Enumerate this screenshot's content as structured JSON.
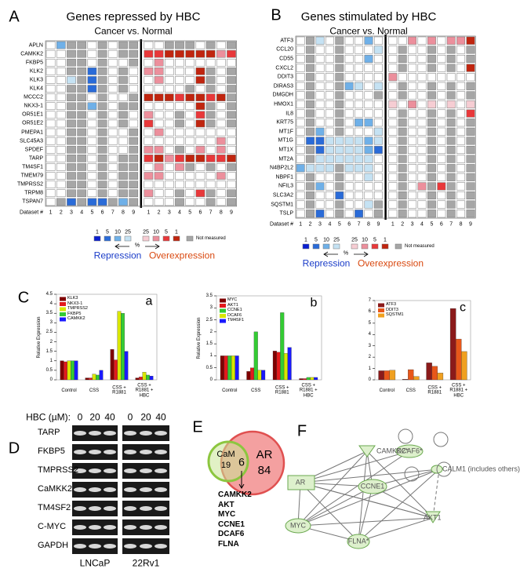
{
  "panels": [
    "A",
    "B",
    "C",
    "D",
    "E",
    "F"
  ],
  "heatmap_legend": {
    "repression": {
      "values": [
        1,
        5,
        10,
        25
      ],
      "colors": [
        "#0a1fd0",
        "#2a6bd8",
        "#6fb0e8",
        "#c5e2f3"
      ]
    },
    "overexpression": {
      "values": [
        25,
        10,
        5,
        1
      ],
      "colors": [
        "#f6cdd3",
        "#ec8f9c",
        "#e8383a",
        "#c0250f"
      ]
    },
    "percent": "%",
    "not_measured": {
      "label": "Not measured",
      "color": "#a6a6a6"
    },
    "repression_label": "Repression",
    "overexpression_label": "Overexpression"
  },
  "heatmaps": [
    {
      "title": "Genes repressed by HBC",
      "subtitle": "Cancer vs. Normal",
      "dataset_label": "Dataset #",
      "datasets": [
        1,
        2,
        3,
        4,
        5,
        6,
        7,
        8,
        9
      ],
      "rows": [
        {
          "gene": "APLN",
          "cells": [
            0,
            -10,
            null,
            null,
            0,
            null,
            0,
            null,
            null,
            0,
            0,
            null,
            null,
            null,
            0,
            null,
            0,
            null
          ]
        },
        {
          "gene": "CAMKK2",
          "cells": [
            0,
            0,
            null,
            null,
            0,
            null,
            0,
            null,
            null,
            5,
            5,
            1,
            1,
            1,
            1,
            1,
            10,
            5
          ]
        },
        {
          "gene": "FKBP5",
          "cells": [
            0,
            0,
            null,
            null,
            0,
            null,
            0,
            0,
            null,
            0,
            10,
            0,
            0,
            0,
            0,
            0,
            0,
            0
          ]
        },
        {
          "gene": "KLK2",
          "cells": [
            0,
            0,
            null,
            null,
            -5,
            null,
            0,
            null,
            0,
            10,
            10,
            0,
            0,
            0,
            1,
            null,
            0,
            null
          ]
        },
        {
          "gene": "KLK3",
          "cells": [
            0,
            0,
            -25,
            null,
            -5,
            null,
            0,
            null,
            0,
            0,
            10,
            0,
            0,
            0,
            1,
            null,
            0,
            null
          ]
        },
        {
          "gene": "KLK4",
          "cells": [
            0,
            0,
            null,
            null,
            -5,
            null,
            0,
            null,
            0,
            0,
            0,
            0,
            0,
            null,
            0,
            null,
            0,
            null
          ]
        },
        {
          "gene": "MCCC2",
          "cells": [
            0,
            0,
            null,
            null,
            0,
            null,
            0,
            0,
            null,
            1,
            1,
            1,
            5,
            1,
            1,
            5,
            1,
            null
          ]
        },
        {
          "gene": "NKX3-1",
          "cells": [
            0,
            0,
            null,
            null,
            -10,
            null,
            0,
            null,
            null,
            0,
            0,
            0,
            0,
            0,
            1,
            null,
            0,
            null
          ]
        },
        {
          "gene": "OR51E1",
          "cells": [
            0,
            0,
            null,
            null,
            0,
            null,
            0,
            null,
            0,
            10,
            0,
            0,
            null,
            0,
            5,
            null,
            0,
            null
          ]
        },
        {
          "gene": "OR51E2",
          "cells": [
            0,
            0,
            null,
            null,
            0,
            null,
            0,
            null,
            0,
            5,
            0,
            0,
            null,
            0,
            1,
            null,
            0,
            null
          ]
        },
        {
          "gene": "PMEPA1",
          "cells": [
            0,
            0,
            null,
            null,
            0,
            null,
            0,
            0,
            null,
            0,
            10,
            0,
            0,
            0,
            0,
            0,
            0,
            0
          ]
        },
        {
          "gene": "SLC45A3",
          "cells": [
            0,
            0,
            null,
            null,
            0,
            null,
            0,
            0,
            null,
            0,
            0,
            0,
            0,
            0,
            0,
            0,
            10,
            0
          ]
        },
        {
          "gene": "SPDEF",
          "cells": [
            0,
            0,
            null,
            null,
            0,
            null,
            0,
            0,
            null,
            10,
            10,
            0,
            null,
            0,
            10,
            0,
            10,
            0
          ]
        },
        {
          "gene": "TARP",
          "cells": [
            0,
            0,
            null,
            null,
            0,
            null,
            0,
            null,
            null,
            5,
            1,
            10,
            5,
            1,
            1,
            5,
            5,
            1
          ]
        },
        {
          "gene": "TM4SF1",
          "cells": [
            0,
            0,
            null,
            null,
            0,
            null,
            0,
            null,
            null,
            0,
            10,
            0,
            10,
            null,
            0,
            null,
            0,
            null
          ]
        },
        {
          "gene": "TMEM79",
          "cells": [
            0,
            0,
            null,
            null,
            0,
            null,
            0,
            null,
            null,
            10,
            10,
            0,
            0,
            0,
            0,
            0,
            10,
            0
          ]
        },
        {
          "gene": "TMPRSS2",
          "cells": [
            0,
            0,
            null,
            null,
            0,
            null,
            0,
            null,
            null,
            0,
            0,
            0,
            0,
            0,
            0,
            0,
            0,
            0
          ]
        },
        {
          "gene": "TRPM8",
          "cells": [
            0,
            0,
            null,
            null,
            0,
            null,
            0,
            null,
            null,
            10,
            0,
            0,
            null,
            0,
            5,
            null,
            0,
            null
          ]
        },
        {
          "gene": "TSPAN7",
          "cells": [
            0,
            null,
            -5,
            null,
            -5,
            -5,
            null,
            -10,
            null,
            0,
            0,
            0,
            null,
            0,
            0,
            null,
            0,
            null
          ]
        }
      ]
    },
    {
      "title": "Genes stimulated by HBC",
      "subtitle": "Cancer vs. Normal",
      "dataset_label": "Dataset #",
      "datasets": [
        1,
        2,
        3,
        4,
        5,
        6,
        7,
        8,
        9
      ],
      "rows": [
        {
          "gene": "ATF3",
          "cells": [
            0,
            null,
            -25,
            0,
            null,
            0,
            0,
            -10,
            0,
            0,
            0,
            10,
            0,
            10,
            0,
            10,
            10,
            1
          ]
        },
        {
          "gene": "CCL20",
          "cells": [
            0,
            null,
            0,
            0,
            null,
            0,
            0,
            0,
            -25,
            0,
            null,
            0,
            0,
            null,
            0,
            null,
            0,
            null
          ]
        },
        {
          "gene": "CD55",
          "cells": [
            0,
            null,
            0,
            0,
            null,
            0,
            0,
            -10,
            0,
            0,
            null,
            0,
            0,
            null,
            0,
            null,
            0,
            null
          ]
        },
        {
          "gene": "CXCL2",
          "cells": [
            0,
            null,
            0,
            0,
            null,
            0,
            0,
            0,
            0,
            0,
            null,
            0,
            0,
            null,
            0,
            null,
            0,
            1
          ]
        },
        {
          "gene": "DDIT3",
          "cells": [
            0,
            null,
            0,
            0,
            null,
            0,
            0,
            0,
            0,
            10,
            0,
            0,
            0,
            0,
            0,
            0,
            0,
            0
          ]
        },
        {
          "gene": "DIRAS3",
          "cells": [
            0,
            null,
            0,
            0,
            null,
            -10,
            -25,
            0,
            -25,
            0,
            null,
            0,
            0,
            null,
            0,
            null,
            0,
            null
          ]
        },
        {
          "gene": "DMGDH",
          "cells": [
            0,
            null,
            0,
            0,
            null,
            0,
            0,
            0,
            null,
            0,
            null,
            0,
            0,
            null,
            0,
            null,
            0,
            null
          ]
        },
        {
          "gene": "HMOX1",
          "cells": [
            0,
            null,
            0,
            0,
            null,
            0,
            0,
            0,
            0,
            25,
            0,
            10,
            0,
            25,
            0,
            25,
            0,
            25
          ]
        },
        {
          "gene": "IL8",
          "cells": [
            0,
            null,
            0,
            0,
            null,
            0,
            0,
            0,
            0,
            0,
            null,
            0,
            0,
            null,
            0,
            null,
            0,
            5
          ]
        },
        {
          "gene": "KRT75",
          "cells": [
            0,
            null,
            0,
            0,
            null,
            0,
            -10,
            -10,
            0,
            0,
            null,
            0,
            0,
            null,
            0,
            null,
            0,
            null
          ]
        },
        {
          "gene": "MT1F",
          "cells": [
            0,
            null,
            -10,
            0,
            null,
            0,
            0,
            0,
            -25,
            0,
            null,
            0,
            0,
            null,
            0,
            null,
            0,
            null
          ]
        },
        {
          "gene": "MT1G",
          "cells": [
            0,
            -5,
            -5,
            -25,
            -25,
            -25,
            -25,
            -10,
            -25,
            0,
            null,
            0,
            0,
            null,
            0,
            null,
            0,
            null
          ]
        },
        {
          "gene": "MT1X",
          "cells": [
            0,
            null,
            -5,
            -25,
            -25,
            -25,
            -25,
            -10,
            -5,
            0,
            null,
            0,
            0,
            null,
            0,
            null,
            0,
            null
          ]
        },
        {
          "gene": "MT2A",
          "cells": [
            0,
            null,
            -25,
            -25,
            -25,
            -25,
            -25,
            -25,
            0,
            0,
            null,
            0,
            0,
            null,
            0,
            null,
            0,
            null
          ]
        },
        {
          "gene": "N4BP2L2",
          "cells": [
            -10,
            -25,
            -25,
            -25,
            null,
            -25,
            -25,
            -25,
            0,
            0,
            null,
            0,
            0,
            null,
            0,
            null,
            0,
            null
          ]
        },
        {
          "gene": "NBPF1",
          "cells": [
            0,
            null,
            0,
            0,
            null,
            0,
            0,
            -25,
            0,
            0,
            null,
            0,
            0,
            null,
            0,
            null,
            0,
            null
          ]
        },
        {
          "gene": "NFIL3",
          "cells": [
            0,
            null,
            -10,
            0,
            null,
            0,
            0,
            0,
            0,
            0,
            null,
            0,
            10,
            null,
            5,
            null,
            0,
            null
          ]
        },
        {
          "gene": "SLC3A2",
          "cells": [
            0,
            null,
            0,
            0,
            -5,
            0,
            0,
            0,
            0,
            0,
            null,
            0,
            0,
            null,
            0,
            null,
            0,
            null
          ]
        },
        {
          "gene": "SQSTM1",
          "cells": [
            0,
            null,
            0,
            0,
            null,
            0,
            0,
            -25,
            null,
            0,
            null,
            0,
            0,
            null,
            0,
            null,
            0,
            null
          ]
        },
        {
          "gene": "TSLP",
          "cells": [
            0,
            null,
            -5,
            0,
            null,
            0,
            -5,
            0,
            null,
            0,
            null,
            0,
            0,
            null,
            0,
            null,
            0,
            null
          ]
        }
      ]
    }
  ],
  "chart_data": [
    {
      "type": "bar",
      "panel": "a",
      "y_label": "Relative Expression",
      "categories": [
        "Control",
        "CSS",
        "CSS + R1881",
        "CSS + R1881 + HBC"
      ],
      "series": [
        {
          "name": "KLK3",
          "color": "#7f0000",
          "values": [
            1.0,
            0.1,
            1.6,
            0.1
          ]
        },
        {
          "name": "NKX3-1",
          "color": "#e31a1c",
          "values": [
            0.95,
            0.1,
            1.05,
            0.15
          ]
        },
        {
          "name": "TMPRSS2",
          "color": "#d8e600",
          "values": [
            1.0,
            0.3,
            3.6,
            0.4
          ]
        },
        {
          "name": "FKBP5",
          "color": "#33cc33",
          "values": [
            1.0,
            0.25,
            3.5,
            0.25
          ]
        },
        {
          "name": "CAMKK2",
          "color": "#1a1aff",
          "values": [
            1.0,
            0.5,
            1.5,
            0.2
          ]
        }
      ],
      "ylim": [
        0,
        4.5
      ],
      "yticks": [
        0,
        0.5,
        1,
        1.5,
        2,
        2.5,
        3,
        3.5,
        4,
        4.5
      ]
    },
    {
      "type": "bar",
      "panel": "b",
      "y_label": "Relative Expression",
      "categories": [
        "Control",
        "CSS",
        "CSS + R1881",
        "CSS + R1881 + HBC"
      ],
      "series": [
        {
          "name": "MYC",
          "color": "#7f0000",
          "values": [
            1.0,
            0.35,
            1.2,
            0.05
          ]
        },
        {
          "name": "AKT1",
          "color": "#e31a1c",
          "values": [
            1.0,
            0.5,
            1.15,
            0.05
          ]
        },
        {
          "name": "CCNE1",
          "color": "#33cc33",
          "values": [
            1.0,
            2.0,
            2.8,
            0.1
          ]
        },
        {
          "name": "DCAF6",
          "color": "#d8e600",
          "values": [
            1.0,
            0.4,
            1.1,
            0.1
          ]
        },
        {
          "name": "TM4SF1",
          "color": "#1a1aff",
          "values": [
            1.0,
            0.4,
            1.35,
            0.1
          ]
        }
      ],
      "ylim": [
        0,
        3.5
      ],
      "yticks": [
        0,
        0.5,
        1,
        1.5,
        2,
        2.5,
        3,
        3.5
      ]
    },
    {
      "type": "bar",
      "panel": "c",
      "categories": [
        "Control",
        "CSS",
        "CSS + R1881",
        "CSS + R1881 + HBC"
      ],
      "series": [
        {
          "name": "ATF3",
          "color": "#8b1a1a",
          "values": [
            0.8,
            0.05,
            1.5,
            6.3
          ]
        },
        {
          "name": "DDIT3",
          "color": "#e8571a",
          "values": [
            0.8,
            0.9,
            1.2,
            3.6
          ]
        },
        {
          "name": "SQSTM1",
          "color": "#f0a020",
          "values": [
            0.85,
            0.3,
            0.6,
            2.5
          ]
        }
      ],
      "ylim": [
        0,
        7
      ],
      "yticks": [
        0,
        1,
        2,
        3,
        4,
        5,
        6,
        7
      ]
    }
  ],
  "gel": {
    "treatment_label": "HBC (µM):",
    "doses": [
      0,
      20,
      40,
      0,
      20,
      40
    ],
    "genes": [
      "TARP",
      "FKBP5",
      "TMPRSS2",
      "CaMKK2",
      "TM4SF2",
      "C-MYC",
      "GAPDH"
    ],
    "cell_lines": [
      "LNCaP",
      "22Rv1"
    ]
  },
  "venn": {
    "left_label": "CaM",
    "left_count": 19,
    "overlap_count": 6,
    "right_label": "AR",
    "right_count": 84,
    "overlap_genes": [
      "CAMKK2",
      "AKT",
      "MYC",
      "CCNE1",
      "DCAF6",
      "FLNA"
    ]
  },
  "network": {
    "nodes": [
      "CAMKK2*",
      "DCAF6*",
      "CALM1 (includes others)",
      "AR",
      "CCNE1",
      "MYC",
      "AKT1",
      "FLNA*"
    ]
  }
}
